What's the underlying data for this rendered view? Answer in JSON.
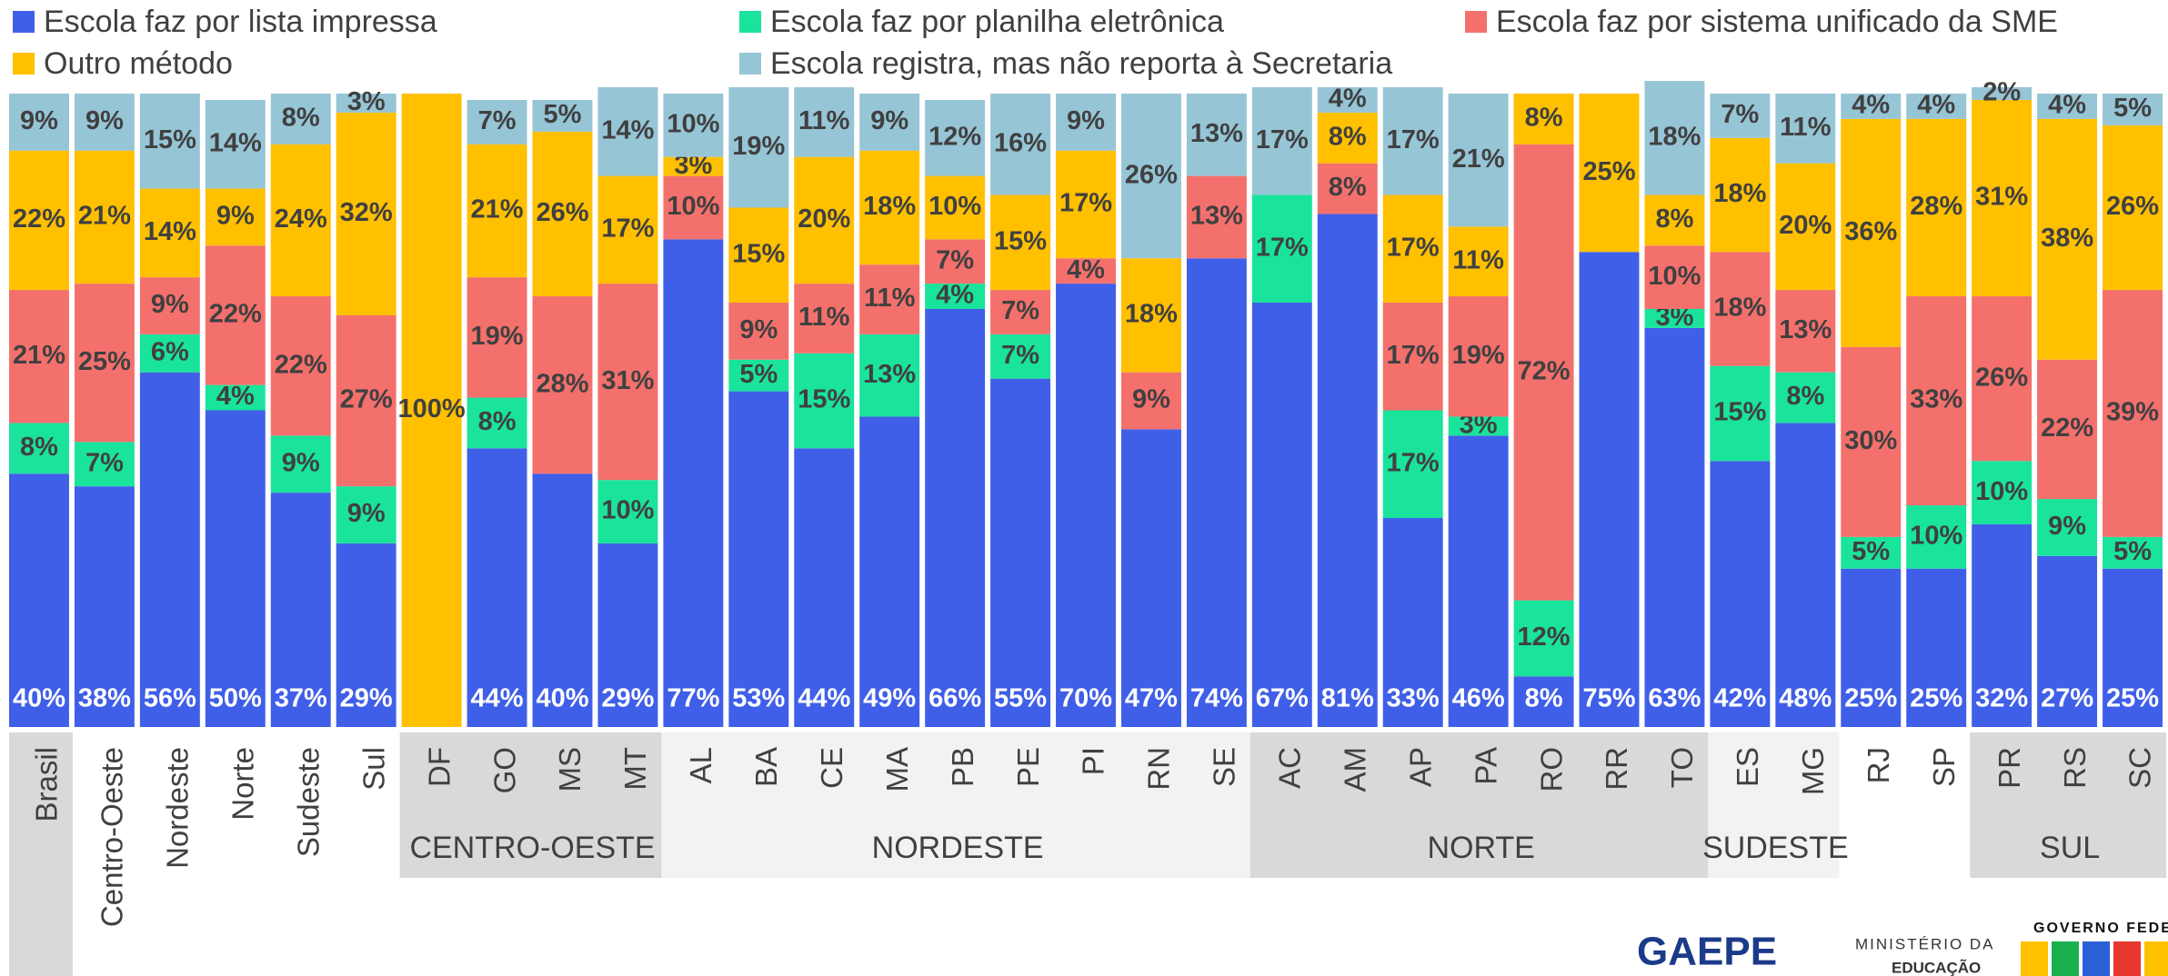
{
  "chart_data": {
    "type": "stacked_bar",
    "ylim": [
      0,
      100
    ],
    "categories": [
      "Brasil",
      "Centro-Oeste",
      "Nordeste",
      "Norte",
      "Sudeste",
      "Sul",
      "DF",
      "GO",
      "MS",
      "MT",
      "AL",
      "BA",
      "CE",
      "MA",
      "PB",
      "PE",
      "PI",
      "RN",
      "SE",
      "AC",
      "AM",
      "AP",
      "PA",
      "RO",
      "RR",
      "TO",
      "ES",
      "MG",
      "RJ",
      "SP",
      "PR",
      "RS",
      "SC"
    ],
    "groups": [
      {
        "label": "CENTRO-OESTE",
        "start": 6,
        "end": 9
      },
      {
        "label": "NORDESTE",
        "start": 10,
        "end": 18
      },
      {
        "label": "NORTE",
        "start": 19,
        "end": 25
      },
      {
        "label": "SUDESTE",
        "start": 26,
        "end": 27
      },
      {
        "label": "SUL",
        "start": 30,
        "end": 32
      }
    ],
    "series": [
      {
        "name": "Escola faz por lista impressa",
        "color": "#405fe8",
        "values": [
          40,
          38,
          56,
          50,
          37,
          29,
          0,
          44,
          40,
          29,
          77,
          53,
          44,
          49,
          66,
          55,
          70,
          47,
          74,
          67,
          81,
          33,
          46,
          8,
          75,
          63,
          42,
          48,
          25,
          25,
          32,
          27,
          25
        ],
        "value_labels": [
          "40%",
          "38%",
          "56%",
          "50%",
          "37%",
          "29%",
          null,
          "44%",
          "40%",
          "29%",
          "77%",
          "53%",
          "44%",
          "49%",
          "66%",
          "55%",
          "70%",
          "47%",
          "74%",
          "67%",
          "81%",
          "33%",
          "46%",
          "8%",
          "75%",
          "63%",
          "42%",
          "48%",
          "25%",
          "25%",
          "32%",
          "27%",
          "25%"
        ]
      },
      {
        "name": "Escola faz por planilha eletrônica",
        "color": "#1ae39c",
        "values": [
          8,
          7,
          6,
          4,
          9,
          9,
          0,
          8,
          0,
          10,
          0,
          5,
          15,
          13,
          4,
          7,
          0,
          0,
          0,
          17,
          0,
          17,
          3,
          12,
          0,
          3,
          15,
          8,
          5,
          10,
          10,
          9,
          5
        ],
        "value_labels": [
          "8%",
          "7%",
          "6%",
          "4%",
          "9%",
          "9%",
          null,
          "8%",
          null,
          "10%",
          null,
          "5%",
          "15%",
          "13%",
          "4%",
          "7%",
          null,
          null,
          null,
          "17%",
          null,
          "17%",
          "3%",
          "12%",
          null,
          "3%",
          "15%",
          "8%",
          "5%",
          "10%",
          "10%",
          "9%",
          "5%"
        ]
      },
      {
        "name": "Escola faz por sistema unificado da SME",
        "color": "#f4706c",
        "values": [
          21,
          25,
          9,
          22,
          22,
          27,
          0,
          19,
          28,
          31,
          10,
          9,
          11,
          11,
          7,
          7,
          4,
          9,
          13,
          0,
          8,
          17,
          19,
          72,
          0,
          10,
          18,
          13,
          30,
          33,
          26,
          22,
          39
        ],
        "value_labels": [
          "21%",
          "25%",
          "9%",
          "22%",
          "22%",
          "27%",
          null,
          "19%",
          "28%",
          "31%",
          "10%",
          "9%",
          "11%",
          "11%",
          "7%",
          "7%",
          "4%",
          "9%",
          "13%",
          null,
          "8%",
          "17%",
          "19%",
          "72%",
          null,
          "10%",
          "18%",
          "13%",
          "30%",
          "33%",
          "26%",
          "22%",
          "39%"
        ]
      },
      {
        "name": "Outro método",
        "color": "#ffc000",
        "values": [
          22,
          21,
          14,
          9,
          24,
          32,
          100,
          21,
          26,
          17,
          3,
          15,
          20,
          18,
          10,
          15,
          17,
          18,
          0,
          0,
          8,
          17,
          11,
          8,
          25,
          8,
          18,
          20,
          36,
          28,
          31,
          38,
          26
        ],
        "value_labels": [
          "22%",
          "21%",
          "14%",
          "9%",
          "24%",
          "32%",
          "100%",
          "21%",
          "26%",
          "17%",
          "3%",
          "15%",
          "20%",
          "18%",
          "10%",
          "15%",
          "17%",
          "18%",
          null,
          null,
          "8%",
          "17%",
          "11%",
          "8%",
          "25%",
          "8%",
          "18%",
          "20%",
          "36%",
          "28%",
          "31%",
          "38%",
          "26%"
        ]
      },
      {
        "name": "Escola registra, mas não reporta à Secretaria",
        "color": "#96c5d6",
        "values": [
          9,
          9,
          15,
          14,
          8,
          3,
          0,
          7,
          5,
          14,
          10,
          19,
          11,
          9,
          12,
          16,
          9,
          26,
          13,
          17,
          4,
          17,
          21,
          0,
          0,
          18,
          7,
          11,
          4,
          4,
          2,
          4,
          5
        ],
        "value_labels": [
          "9%",
          "9%",
          "15%",
          "14%",
          "8%",
          "3%",
          null,
          "7%",
          "5%",
          "14%",
          "10%",
          "19%",
          "11%",
          "9%",
          "12%",
          "16%",
          "9%",
          "26%",
          "13%",
          "17%",
          "4%",
          "17%",
          "21%",
          null,
          null,
          "18%",
          "7%",
          "11%",
          "4%",
          "4%",
          "2%",
          "4%",
          "5%"
        ]
      }
    ]
  },
  "footer": {
    "logos": [
      "GAEPE",
      "MINISTÉRIO DA",
      "EDUCAÇÃO",
      "GOVERNO FEDERAL"
    ]
  }
}
